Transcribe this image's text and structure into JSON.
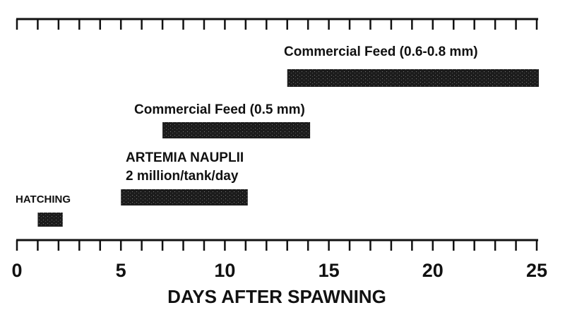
{
  "chart_data": {
    "type": "bar",
    "orientation": "horizontal-timeline",
    "title": "",
    "xlabel": "DAYS AFTER SPAWNING",
    "ylabel": "",
    "xlim": [
      0,
      25
    ],
    "x_ticks": [
      0,
      5,
      10,
      15,
      20,
      25
    ],
    "minor_tick_step": 1,
    "grid": false,
    "bar_color": "#1a1a1a",
    "series": [
      {
        "name": "HATCHING",
        "label_lines": [
          "HATCHING"
        ],
        "start": 1,
        "end": 2.2
      },
      {
        "name": "ARTEMIA NAUPLII",
        "label_lines": [
          "ARTEMIA NAUPLII",
          "2 million/tank/day"
        ],
        "start": 5,
        "end": 11.1
      },
      {
        "name": "Commercial Feed (0.5 mm)",
        "label_lines": [
          "Commercial Feed (0.5 mm)"
        ],
        "start": 7,
        "end": 14.1
      },
      {
        "name": "Commercial Feed (0.6-0.8 mm)",
        "label_lines": [
          "Commercial Feed (0.6-0.8 mm)"
        ],
        "start": 13,
        "end": 25.1
      }
    ]
  }
}
